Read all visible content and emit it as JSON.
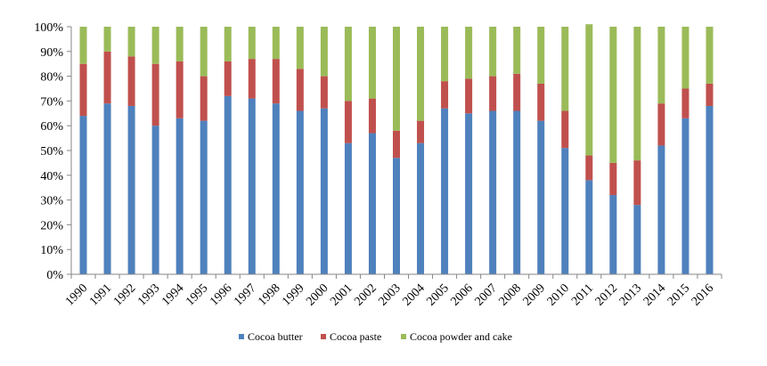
{
  "chart_data": {
    "type": "bar",
    "stacked": true,
    "normalized": true,
    "categories": [
      "1990",
      "1991",
      "1992",
      "1993",
      "1994",
      "1995",
      "1996",
      "1997",
      "1998",
      "1999",
      "2000",
      "2001",
      "2002",
      "2003",
      "2004",
      "2005",
      "2006",
      "2007",
      "2008",
      "2009",
      "2010",
      "2011",
      "2012",
      "2013",
      "2014",
      "2015",
      "2016"
    ],
    "series": [
      {
        "name": "Cocoa butter",
        "color": "#4f81bd",
        "values": [
          64,
          69,
          68,
          60,
          63,
          62,
          72,
          71,
          69,
          66,
          67,
          53,
          57,
          47,
          53,
          67,
          65,
          66,
          66,
          62,
          51,
          38,
          32,
          28,
          52,
          63,
          68
        ]
      },
      {
        "name": "Cocoa paste",
        "color": "#c0504d",
        "values": [
          21,
          21,
          20,
          25,
          23,
          18,
          14,
          16,
          18,
          17,
          13,
          17,
          14,
          11,
          9,
          11,
          14,
          14,
          15,
          15,
          15,
          10,
          13,
          18,
          17,
          12,
          9
        ]
      },
      {
        "name": "Cocoa powder and cake",
        "color": "#9bbb59",
        "values": [
          15,
          10,
          12,
          15,
          14,
          20,
          14,
          13,
          13,
          17,
          20,
          30,
          29,
          42,
          38,
          22,
          21,
          20,
          19,
          23,
          34,
          53,
          55,
          54,
          31,
          25,
          23
        ]
      }
    ],
    "ylim": [
      0,
      100
    ],
    "yticks": [
      "0%",
      "10%",
      "20%",
      "30%",
      "40%",
      "50%",
      "60%",
      "70%",
      "80%",
      "90%",
      "100%"
    ],
    "ytick_values": [
      0,
      10,
      20,
      30,
      40,
      50,
      60,
      70,
      80,
      90,
      100
    ],
    "grid": false,
    "legend_position": "bottom"
  }
}
